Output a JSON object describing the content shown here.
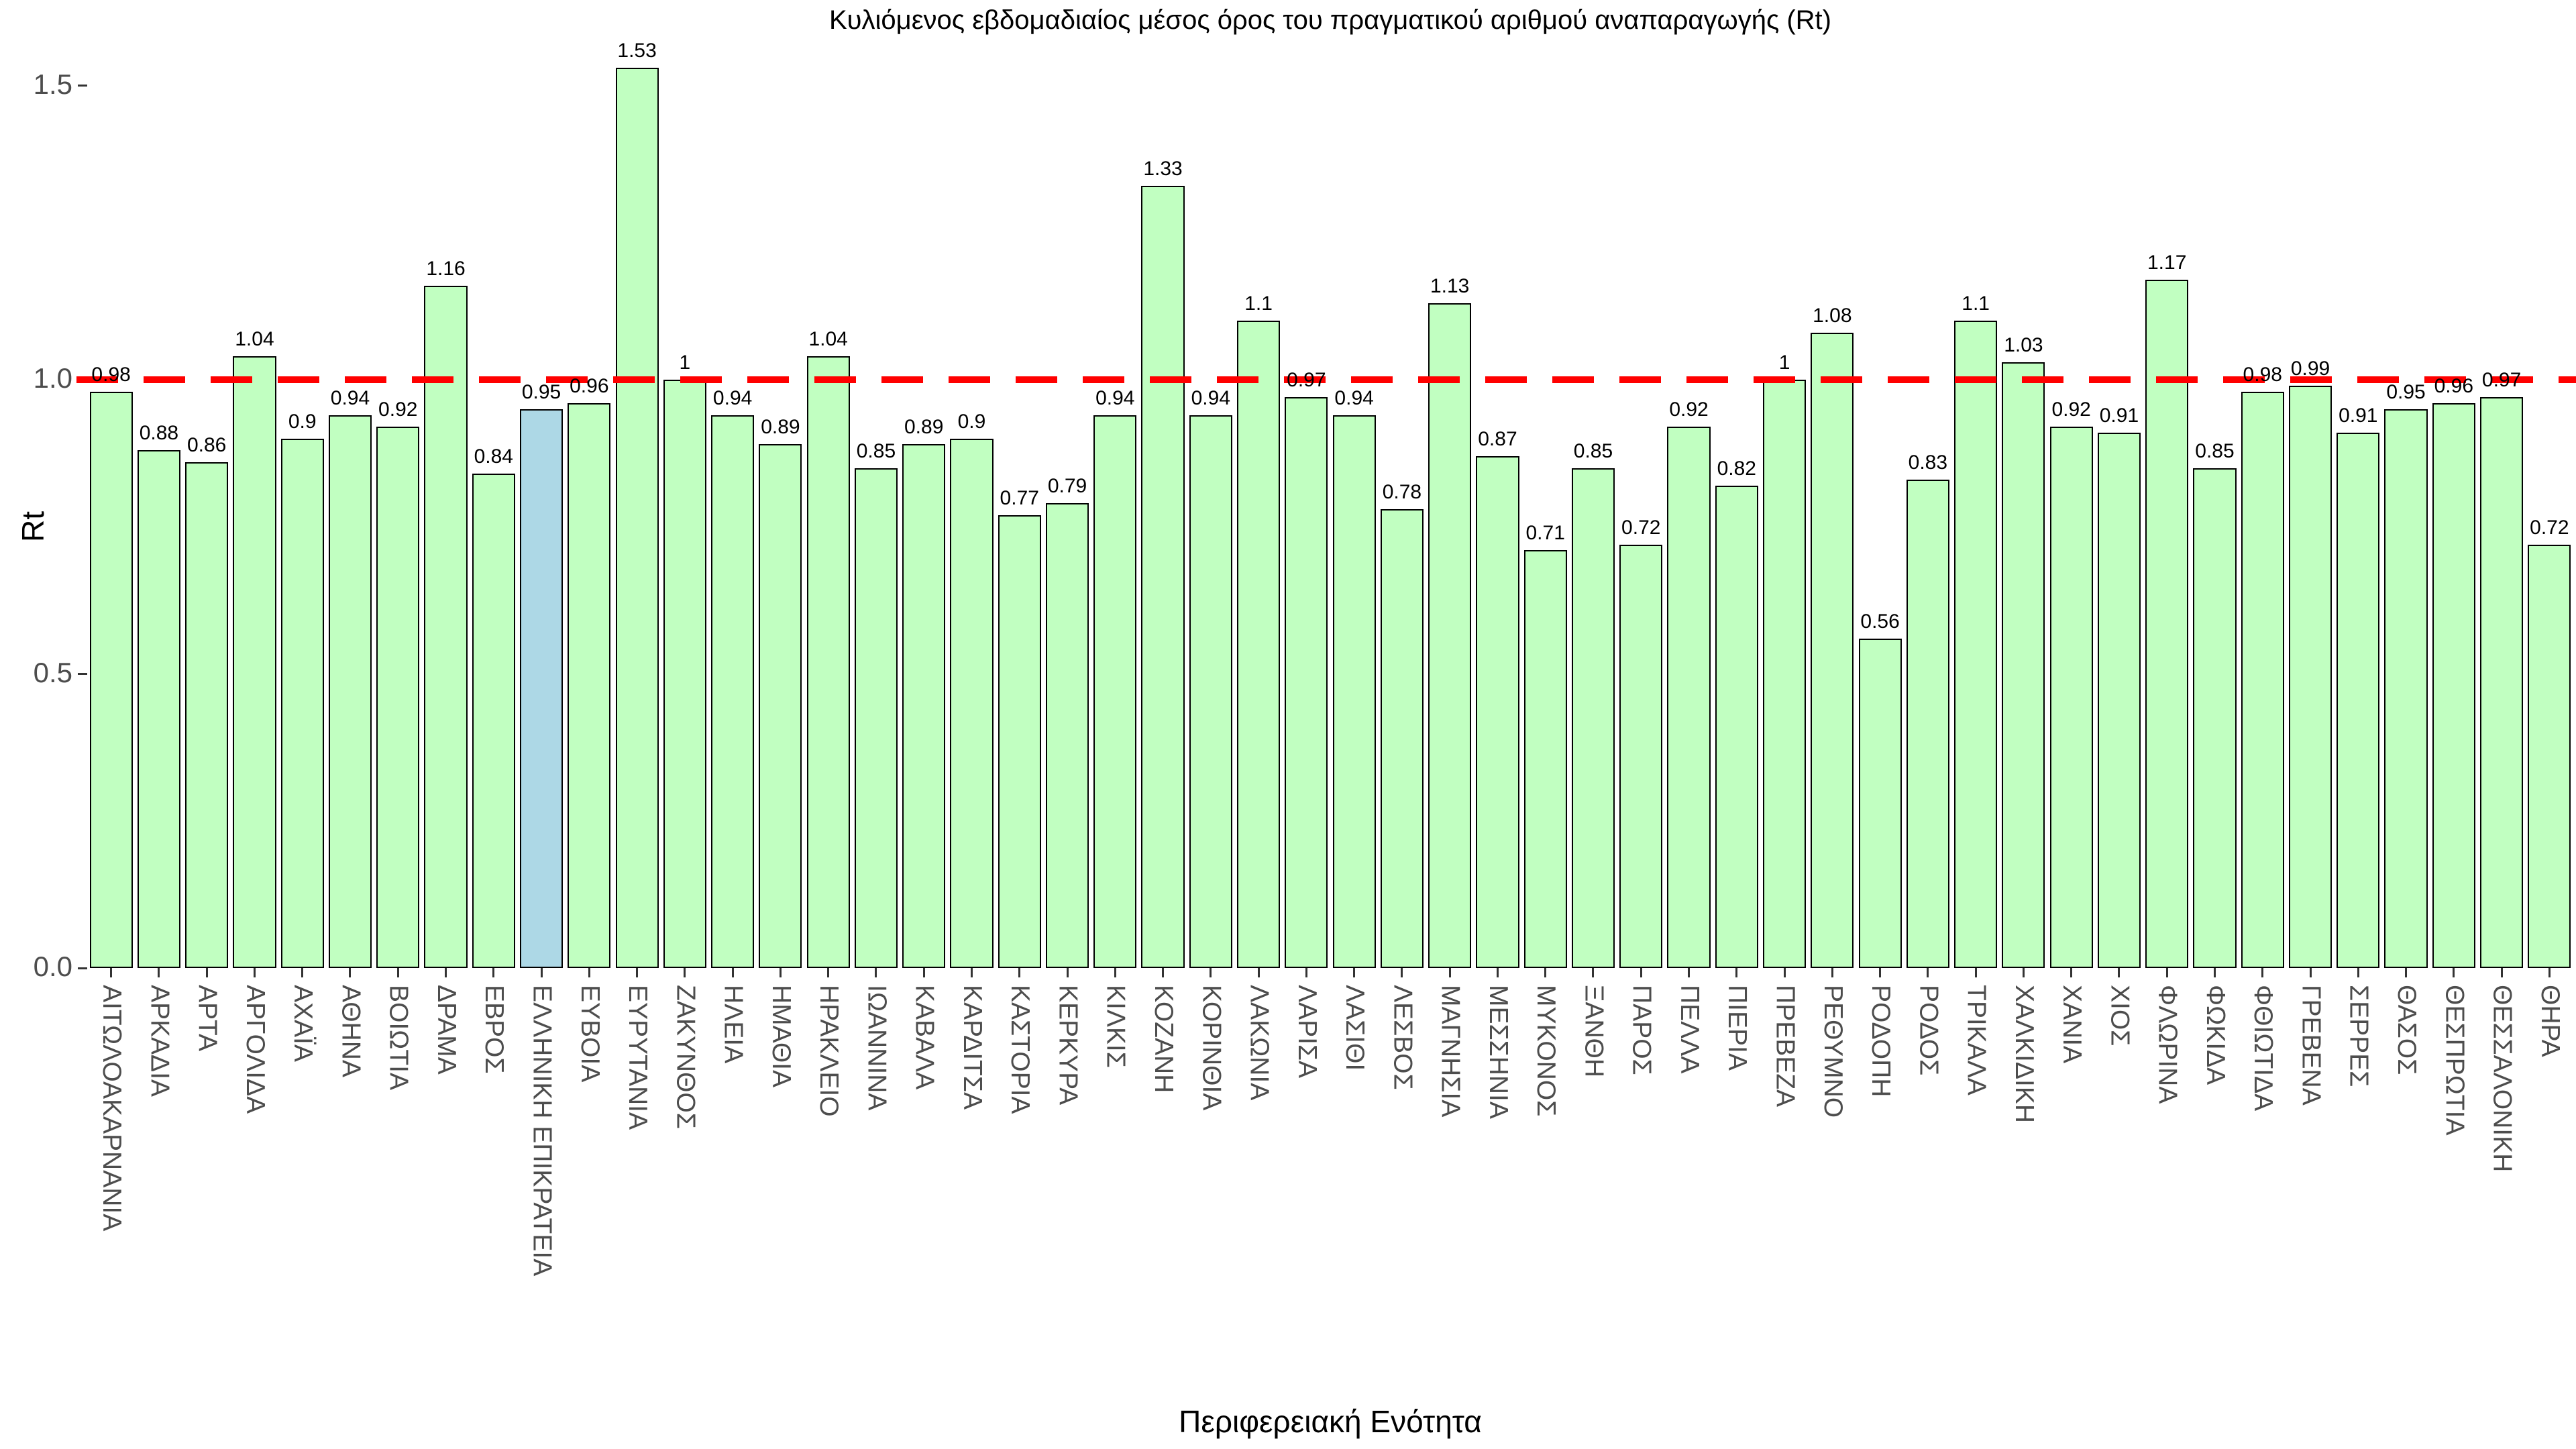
{
  "chart_data": {
    "type": "bar",
    "title": "Κυλιόμενος εβδομαδιαίος μέσος όρος του πραγματικού αριθμού αναπαραγωγής (Rt)",
    "xlabel": "Περιφερειακή Ενότητα",
    "ylabel": "Rt",
    "ylim": [
      0,
      1.5
    ],
    "grid": false,
    "ytick_values": [
      0,
      0.5,
      1.0,
      1.5
    ],
    "ytick_labels": [
      "0.0",
      "0.5",
      "1.0",
      "1.5"
    ],
    "reference_line": {
      "value": 1.0,
      "color": "#ff0000",
      "style": "dashed"
    },
    "bar_color": "#c1ffc1",
    "bar_border_color": "#000000",
    "highlight_color": "#add8e6",
    "highlight_category": "ΕΛΛΗΝΙΚΗ ΕΠΙΚΡΑΤΕΙΑ",
    "label_color": "#4d4d4d",
    "categories": [
      "ΑΙΤΩΛΟΑΚΑΡΝΑΝΙΑ",
      "ΑΡΚΑΔΙΑ",
      "ΑΡΤΑ",
      "ΑΡΓΟΛΙΔΑ",
      "ΑΧΑΪΑ",
      "ΑΘΗΝΑ",
      "ΒΟΙΩΤΙΑ",
      "ΔΡΑΜΑ",
      "ΕΒΡΟΣ",
      "ΕΛΛΗΝΙΚΗ ΕΠΙΚΡΑΤΕΙΑ",
      "ΕΥΒΟΙΑ",
      "ΕΥΡΥΤΑΝΙΑ",
      "ΖΑΚΥΝΘΟΣ",
      "ΗΛΕΙΑ",
      "ΗΜΑΘΙΑ",
      "ΗΡΑΚΛΕΙΟ",
      "ΙΩΑΝΝΙΝΑ",
      "ΚΑΒΑΛΑ",
      "ΚΑΡΔΙΤΣΑ",
      "ΚΑΣΤΟΡΙΑ",
      "ΚΕΡΚΥΡΑ",
      "ΚΙΛΚΙΣ",
      "ΚΟΖΑΝΗ",
      "ΚΟΡΙΝΘΙΑ",
      "ΛΑΚΩΝΙΑ",
      "ΛΑΡΙΣΑ",
      "ΛΑΣΙΘΙ",
      "ΛΕΣΒΟΣ",
      "ΜΑΓΝΗΣΙΑ",
      "ΜΕΣΣΗΝΙΑ",
      "ΜΥΚΟΝΟΣ",
      "ΞΑΝΘΗ",
      "ΠΑΡΟΣ",
      "ΠΕΛΛΑ",
      "ΠΙΕΡΙΑ",
      "ΠΡΕΒΕΖΑ",
      "ΡΕΘΥΜΝΟ",
      "ΡΟΔΟΠΗ",
      "ΡΟΔΟΣ",
      "ΤΡΙΚΑΛΑ",
      "ΧΑΛΚΙΔΙΚΗ",
      "ΧΑΝΙΑ",
      "ΧΙΟΣ",
      "ΦΛΩΡΙΝΑ",
      "ΦΩΚΙΔΑ",
      "ΦΘΙΩΤΙΔΑ",
      "ΓΡΕΒΕΝΑ",
      "ΣΕΡΡΕΣ",
      "ΘΑΣΟΣ",
      "ΘΕΣΠΡΩΤΙΑ",
      "ΘΕΣΣΑΛΟΝΙΚΗ",
      "ΘΗΡΑ"
    ],
    "values": [
      0.98,
      0.88,
      0.86,
      1.04,
      0.9,
      0.94,
      0.92,
      1.16,
      0.84,
      0.95,
      0.96,
      1.53,
      1,
      0.94,
      0.89,
      1.04,
      0.85,
      0.89,
      0.9,
      0.77,
      0.79,
      0.94,
      1.33,
      0.94,
      1.1,
      0.97,
      0.94,
      0.78,
      1.13,
      0.87,
      0.71,
      0.85,
      0.72,
      0.92,
      0.82,
      1,
      1.08,
      0.56,
      0.83,
      1.1,
      1.03,
      0.92,
      0.91,
      1.17,
      0.85,
      0.98,
      0.99,
      0.91,
      0.95,
      0.96,
      0.97,
      0.72
    ],
    "value_labels": [
      "0.98",
      "0.88",
      "0.86",
      "1.04",
      "0.9",
      "0.94",
      "0.92",
      "1.16",
      "0.84",
      "0.95",
      "0.96",
      "1.53",
      "1",
      "0.94",
      "0.89",
      "1.04",
      "0.85",
      "0.89",
      "0.9",
      "0.77",
      "0.79",
      "0.94",
      "1.33",
      "0.94",
      "1.1",
      "0.97",
      "0.94",
      "0.78",
      "1.13",
      "0.87",
      "0.71",
      "0.85",
      "0.72",
      "0.92",
      "0.82",
      "1",
      "1.08",
      "0.56",
      "0.83",
      "1.1",
      "1.03",
      "0.92",
      "0.91",
      "1.17",
      "0.85",
      "0.98",
      "0.99",
      "0.91",
      "0.95",
      "0.96",
      "0.97",
      "0.72"
    ]
  }
}
